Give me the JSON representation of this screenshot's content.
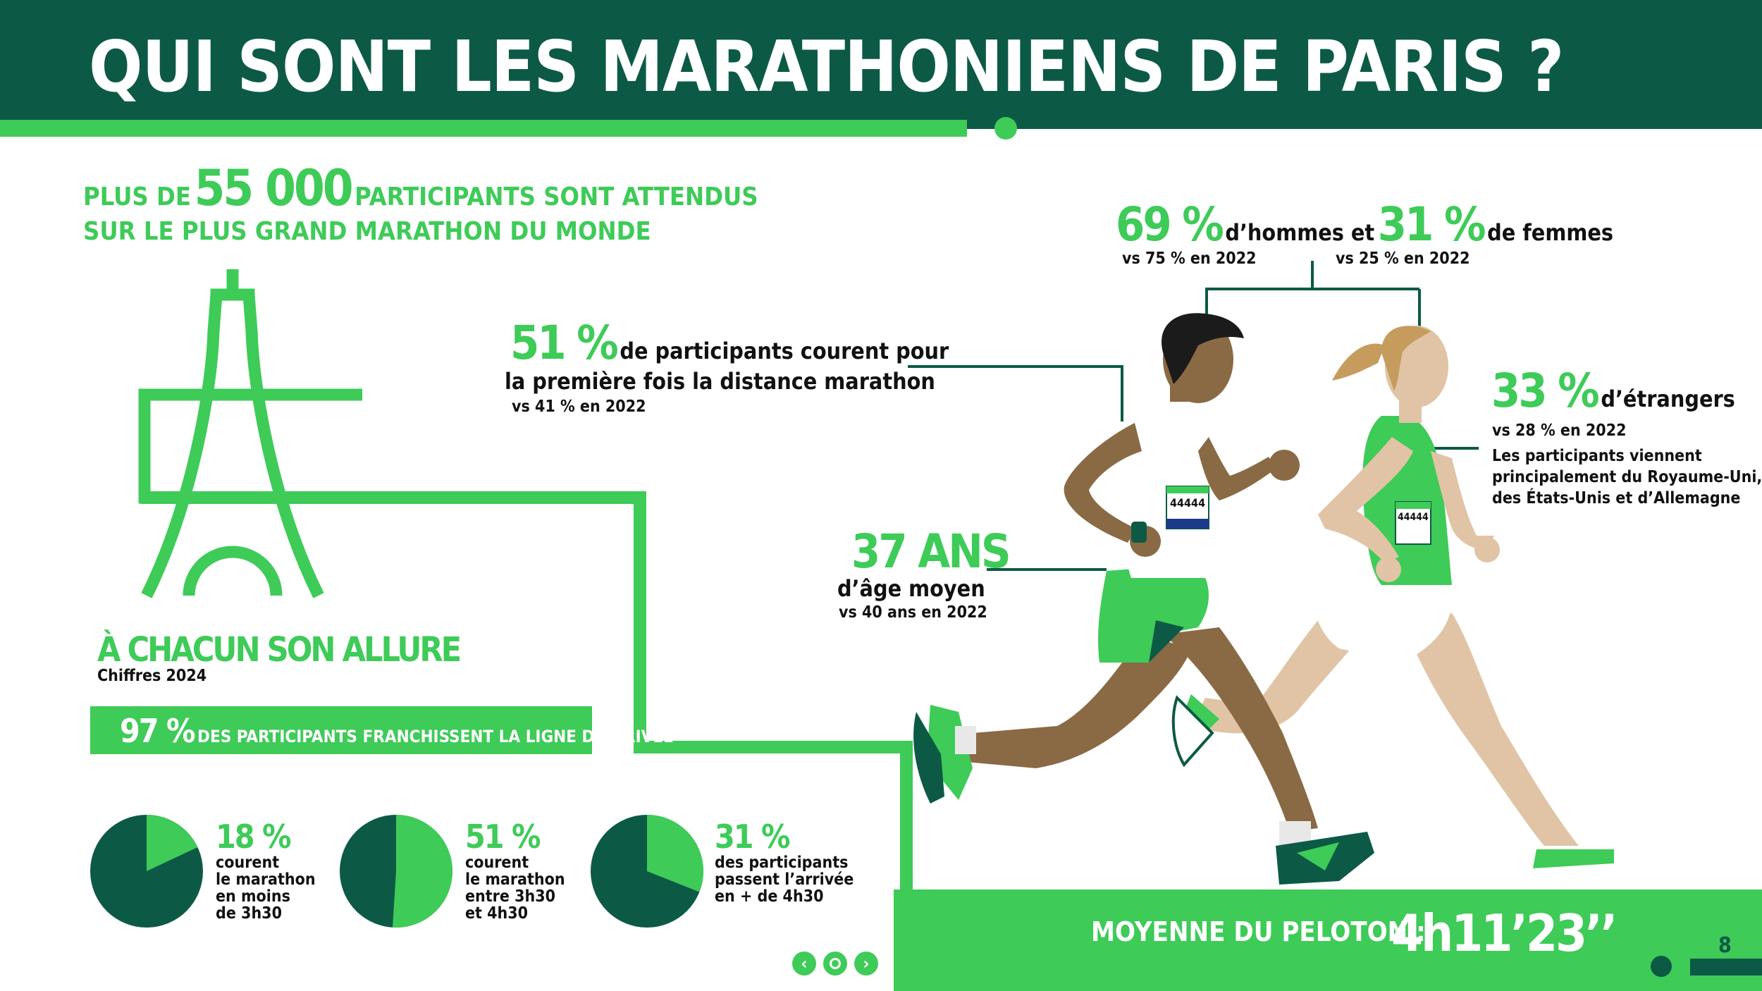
{
  "header": {
    "title": "QUI SONT LES MARATHONIENS DE PARIS ?"
  },
  "intro": {
    "prefix": "PLUS DE",
    "number": "55 000",
    "suffix": "PARTICIPANTS SONT ATTENDUS",
    "line2": "SUR LE PLUS GRAND MARATHON DU MONDE"
  },
  "gender": {
    "men_pct": "69 %",
    "men_text": "d’hommes et",
    "women_pct": "31 %",
    "women_text": "de femmes",
    "men_vs": "vs 75 % en 2022",
    "women_vs": "vs 25 % en 2022"
  },
  "first_time": {
    "pct": "51 %",
    "text1": "de participants courent pour",
    "text2": "la première fois la distance marathon",
    "vs": "vs 41 % en 2022"
  },
  "foreigners": {
    "pct": "33 %",
    "text": "d’étrangers",
    "vs": "vs 28 % en 2022",
    "detail": [
      "Les participants viennent",
      "principalement du Royaume-Uni,",
      "des États-Unis et d’Allemagne"
    ]
  },
  "age": {
    "value": "37 ANS",
    "text": "d’âge moyen",
    "vs": "vs 40 ans en 2022"
  },
  "allure": {
    "title": "À CHACUN SON ALLURE",
    "subtitle": "Chiffres 2024"
  },
  "finish": {
    "pct": "97 %",
    "text": "DES PARTICIPANTS FRANCHISSENT LA LIGNE D’ARRIVÉE"
  },
  "pies": [
    {
      "fraction": 0.18,
      "pct": "18 %",
      "text": "courent\nle marathon\nen moins\nde 3h30"
    },
    {
      "fraction": 0.51,
      "pct": "51 %",
      "text": "courent\nle marathon\nentre 3h30\net 4h30"
    },
    {
      "fraction": 0.31,
      "pct": "31 %",
      "text": "des participants\npassent l’arrivée\nen + de 4h30"
    }
  ],
  "average": {
    "label": "MOYENNE DU PELOTON :",
    "value": "4h11’23’’"
  },
  "bib": {
    "number": "44444"
  },
  "page": {
    "number": "8"
  },
  "colors": {
    "dark_green": "#0c5a46",
    "light_green": "#3ecb58",
    "dark_skin": "#8a6a44",
    "light_skin": "#e0c4a5"
  }
}
